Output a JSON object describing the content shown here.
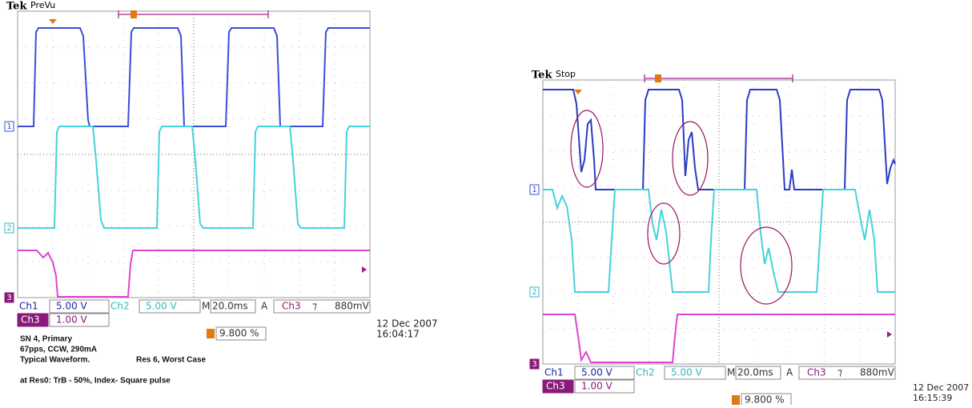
{
  "left_scope": {
    "brand": "Tek",
    "status": "PreVu",
    "channel_markers": [
      "1",
      "2",
      "3"
    ],
    "readout": {
      "ch1_label": "Ch1",
      "ch1_scale": "5.00 V",
      "ch2_label": "Ch2",
      "ch2_scale": "5.00 V",
      "time_prefix": "M",
      "time_scale": "20.0ms",
      "trigger_mode": "A",
      "trigger_source": "Ch3",
      "trigger_slope": "⁊",
      "trigger_level": "880mV",
      "ch3_label": "Ch3",
      "ch3_scale": "1.00 V",
      "trigger_position": "9.800 %"
    },
    "date": "12 Dec 2007",
    "time": "16:04:17",
    "notes": [
      "SN 4, Primary",
      "67pps, CCW, 290mA",
      "Typical Waveform.",
      "Res 6,  Worst Case",
      "at Res0: TrB - 50%, Index- Square pulse"
    ]
  },
  "right_scope": {
    "brand": "Tek",
    "status": "Stop",
    "channel_markers": [
      "1",
      "2",
      "3"
    ],
    "readout": {
      "ch1_label": "Ch1",
      "ch1_scale": "5.00 V",
      "ch2_label": "Ch2",
      "ch2_scale": "5.00 V",
      "time_prefix": "M",
      "time_scale": "20.0ms",
      "trigger_mode": "A",
      "trigger_source": "Ch3",
      "trigger_slope": "⁊",
      "trigger_level": "880mV",
      "ch3_label": "Ch3",
      "ch3_scale": "1.00 V",
      "trigger_position": "9.800 %"
    },
    "date": "12 Dec 2007",
    "time": "16:15:39"
  }
}
